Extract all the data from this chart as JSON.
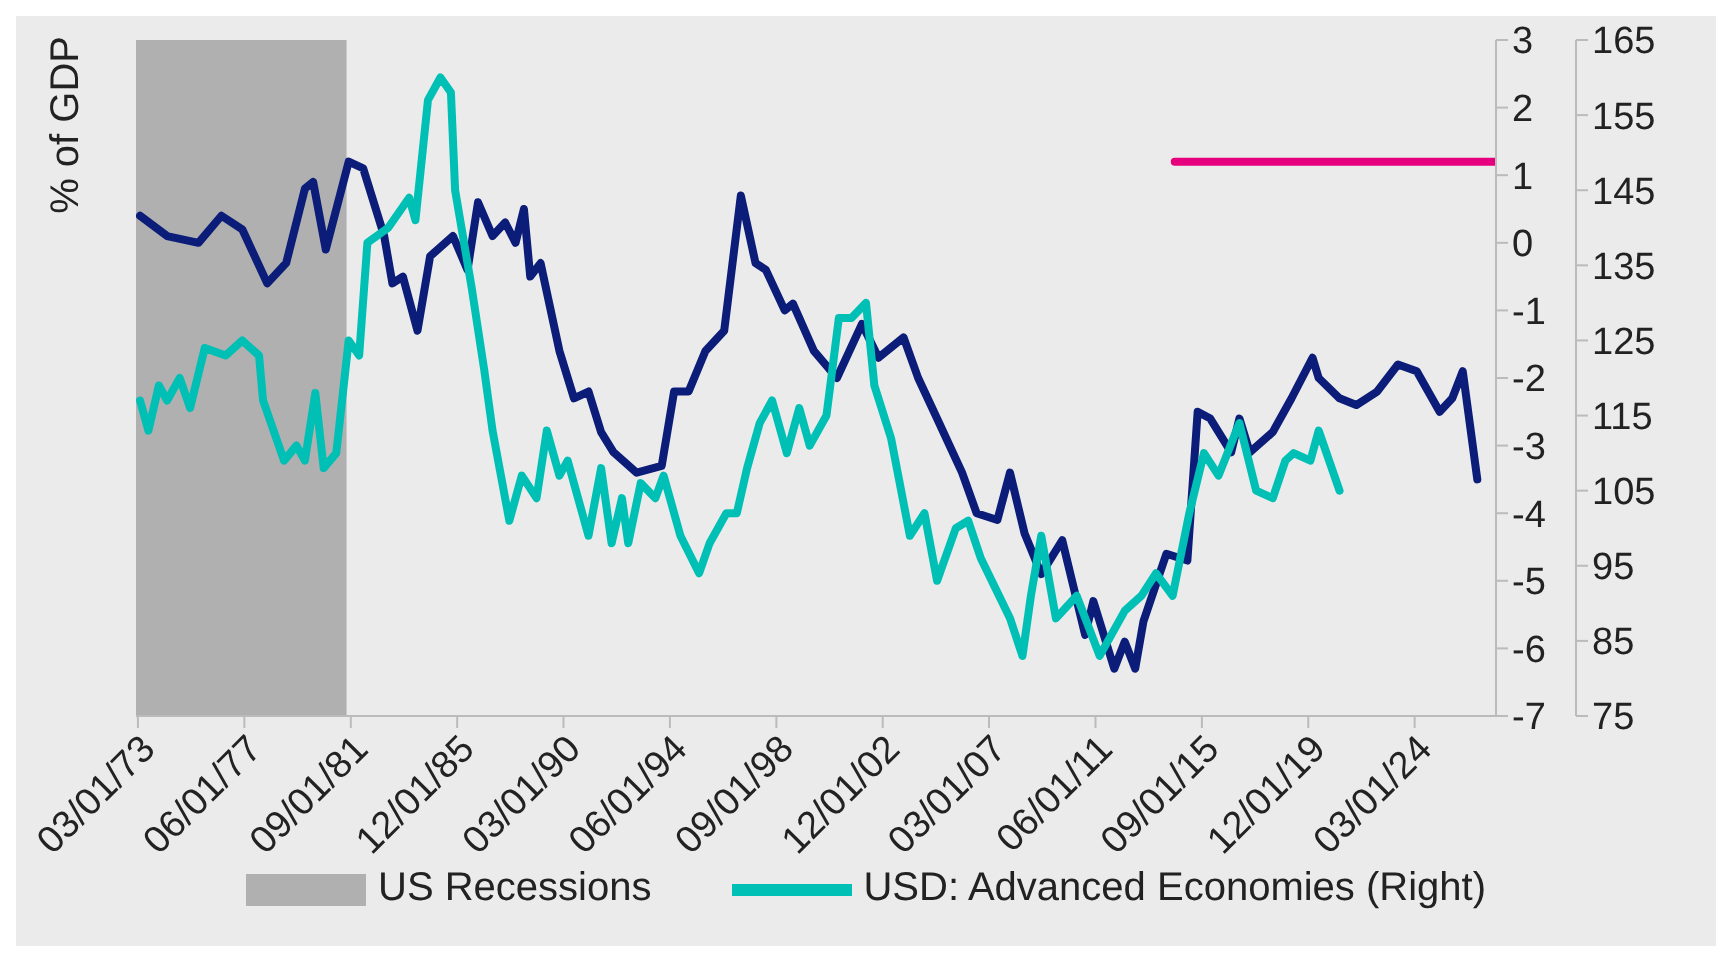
{
  "chart_data": {
    "type": "line",
    "ylabel": "% of GDP",
    "xlim": [
      "1973-02",
      "2027-06"
    ],
    "xticks": [
      {
        "value": "1973-03-01",
        "label": "03/01/73"
      },
      {
        "value": "1977-06-01",
        "label": "06/01/77"
      },
      {
        "value": "1981-09-01",
        "label": "09/01/81"
      },
      {
        "value": "1985-12-01",
        "label": "12/01/85"
      },
      {
        "value": "1990-03-01",
        "label": "03/01/90"
      },
      {
        "value": "1994-06-01",
        "label": "06/01/94"
      },
      {
        "value": "1998-09-01",
        "label": "09/01/98"
      },
      {
        "value": "2002-12-01",
        "label": "12/01/02"
      },
      {
        "value": "2007-03-01",
        "label": "03/01/07"
      },
      {
        "value": "2011-06-01",
        "label": "06/01/11"
      },
      {
        "value": "2015-09-01",
        "label": "09/01/15"
      },
      {
        "value": "2019-12-01",
        "label": "12/01/19"
      },
      {
        "value": "2024-03-01",
        "label": "03/01/24"
      }
    ],
    "ylim": [
      -7,
      3
    ],
    "yticks": [
      -7,
      -6,
      -5,
      -4,
      -3,
      -2,
      -1,
      0,
      1,
      2,
      3
    ],
    "y2lim": [
      75,
      165
    ],
    "y2ticks": [
      75,
      85,
      95,
      105,
      115,
      125,
      135,
      145,
      155,
      165
    ],
    "grid": false,
    "legend": "bottom",
    "bands": [
      {
        "axis": "x",
        "from": "1973-02",
        "to": "1981-07",
        "label": "US Recessions",
        "color": "#b0b0b0"
      }
    ],
    "series": [
      {
        "color": "#0b1d78",
        "x": [
          "1973-04",
          "1974-05",
          "1975-08",
          "1976-07",
          "1977-05",
          "1978-05",
          "1979-02",
          "1979-11",
          "1980-03",
          "1980-09",
          "1981-08",
          "1982-03",
          "1983-01",
          "1983-05",
          "1983-10",
          "1984-05",
          "1984-11",
          "1985-10",
          "1986-05",
          "1986-10",
          "1987-05",
          "1987-11",
          "1988-04",
          "1988-08",
          "1988-11",
          "1989-04",
          "1990-01",
          "1990-08",
          "1991-03",
          "1991-09",
          "1992-03",
          "1993-02",
          "1994-02",
          "1994-08",
          "1995-03",
          "1995-11",
          "1996-08",
          "1997-04",
          "1997-11",
          "1998-04",
          "1999-01",
          "1999-05",
          "2000-03",
          "2001-02",
          "2002-02",
          "2002-10",
          "2003-10",
          "2004-05",
          "2005-02",
          "2006-02",
          "2006-09",
          "2007-07",
          "2008-01",
          "2008-08",
          "2009-04",
          "2010-02",
          "2011-01",
          "2011-05",
          "2012-03",
          "2012-08",
          "2013-01",
          "2013-05",
          "2014-04",
          "2015-02",
          "2015-07",
          "2016-01",
          "2016-11",
          "2017-03",
          "2017-08",
          "2018-07",
          "2019-04",
          "2020-02",
          "2020-05",
          "2021-03",
          "2021-11",
          "2022-09",
          "2023-07",
          "2024-04",
          "2025-03",
          "2025-09",
          "2026-02",
          "2026-09"
        ],
        "values": [
          0.4,
          0.1,
          0.0,
          0.4,
          0.2,
          -0.6,
          -0.3,
          0.8,
          0.9,
          -0.1,
          1.2,
          1.1,
          0.1,
          -0.6,
          -0.5,
          -1.3,
          -0.2,
          0.1,
          -0.4,
          0.6,
          0.1,
          0.3,
          0.0,
          0.5,
          -0.5,
          -0.3,
          -1.6,
          -2.3,
          -2.2,
          -2.8,
          -3.1,
          -3.4,
          -3.3,
          -2.2,
          -2.2,
          -1.6,
          -1.3,
          0.7,
          -0.3,
          -0.4,
          -1.0,
          -0.9,
          -1.6,
          -2.0,
          -1.2,
          -1.7,
          -1.4,
          -2.0,
          -2.6,
          -3.4,
          -4.0,
          -4.1,
          -3.4,
          -4.3,
          -4.9,
          -4.4,
          -5.8,
          -5.3,
          -6.3,
          -5.9,
          -6.3,
          -5.6,
          -4.6,
          -4.7,
          -2.5,
          -2.6,
          -3.1,
          -2.6,
          -3.1,
          -2.8,
          -2.3,
          -1.7,
          -2.0,
          -2.3,
          -2.4,
          -2.2,
          -1.8,
          -1.9,
          -2.5,
          -2.3,
          -1.9,
          -3.5
        ]
      },
      {
        "name": "USD: Advanced Economies (Right)",
        "color": "#00c0b5",
        "axis": "y2",
        "x": [
          "1973-04",
          "1973-08",
          "1974-01",
          "1974-05",
          "1974-11",
          "1975-04",
          "1975-11",
          "1976-09",
          "1977-05",
          "1978-01",
          "1978-03",
          "1979-01",
          "1979-07",
          "1979-11",
          "1980-04",
          "1980-08",
          "1981-02",
          "1981-08",
          "1982-01",
          "1982-05",
          "1983-03",
          "1984-01",
          "1984-04",
          "1984-10",
          "1985-04",
          "1985-09",
          "1985-11",
          "1986-07",
          "1987-01",
          "1987-05",
          "1988-01",
          "1988-07",
          "1989-02",
          "1989-07",
          "1990-01",
          "1990-05",
          "1991-03",
          "1991-09",
          "1992-02",
          "1992-07",
          "1992-10",
          "1993-04",
          "1993-11",
          "1994-03",
          "1994-11",
          "1995-08",
          "1996-01",
          "1996-09",
          "1997-02",
          "1997-07",
          "1998-01",
          "1998-07",
          "1999-02",
          "1999-08",
          "2000-01",
          "2000-09",
          "2001-03",
          "2001-09",
          "2002-04",
          "2002-08",
          "2003-04",
          "2004-01",
          "2004-08",
          "2005-02",
          "2005-11",
          "2006-05",
          "2006-11",
          "2008-01",
          "2008-07",
          "2008-11",
          "2009-04",
          "2009-11",
          "2010-09",
          "2011-08",
          "2012-08",
          "2013-04",
          "2013-11",
          "2014-07",
          "2015-03",
          "2015-10",
          "2016-05",
          "2017-03",
          "2017-11",
          "2018-07",
          "2019-01",
          "2019-05",
          "2020-01",
          "2020-05",
          "2021-03"
        ],
        "values": [
          117,
          113,
          119,
          117,
          120,
          116,
          124,
          123,
          125,
          123,
          117,
          109,
          111,
          109,
          118,
          108,
          110,
          125,
          123,
          138,
          140,
          144,
          141,
          157,
          160,
          158,
          145,
          132,
          121,
          113,
          101,
          107,
          104,
          113,
          107,
          109,
          99,
          108,
          98,
          104,
          98,
          106,
          104,
          107,
          99,
          94,
          98,
          102,
          102,
          108,
          114,
          117,
          110,
          116,
          111,
          115,
          128,
          128,
          130,
          119,
          112,
          99,
          102,
          93,
          100,
          101,
          96,
          88,
          83,
          91,
          99,
          88,
          91,
          83,
          89,
          91,
          94,
          91,
          102,
          110,
          107,
          114,
          105,
          104,
          109,
          110,
          109,
          113,
          105
        ]
      },
      {
        "color": "#e6007e",
        "x": [
          "2014-08",
          "2027-06"
        ],
        "values": [
          1.2,
          1.2
        ]
      }
    ]
  }
}
